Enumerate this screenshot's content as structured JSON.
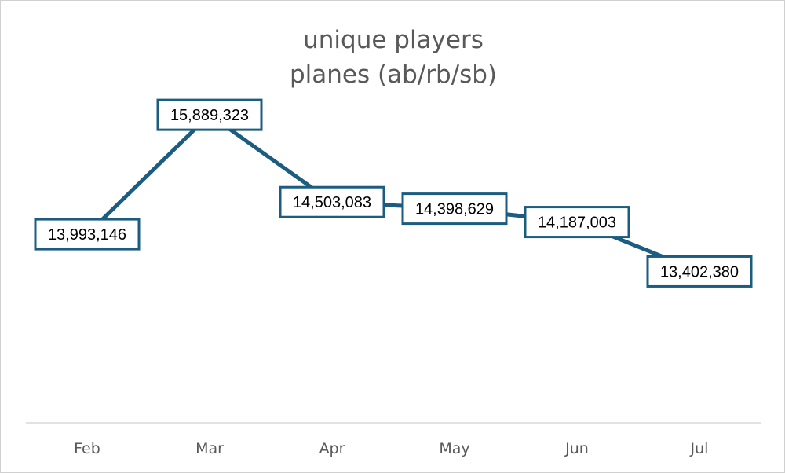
{
  "chart_data": {
    "type": "line",
    "title_lines": [
      "unique players",
      "planes (ab/rb/sb)"
    ],
    "categories": [
      "Feb",
      "Mar",
      "Apr",
      "May",
      "Jun",
      "Jul"
    ],
    "values": [
      13993146,
      15889323,
      14503083,
      14398629,
      14187003,
      13402380
    ],
    "value_labels": [
      "13,993,146",
      "15,889,323",
      "14,503,083",
      "14,398,629",
      "14,187,003",
      "13,402,380"
    ],
    "xlabel": "",
    "ylabel": "",
    "ylim": [
      11000000,
      17700000
    ],
    "grid": false,
    "legend": "none",
    "series_color": "#1b5c80",
    "axis_color": "#d9d9d9",
    "text_color": "#595959"
  }
}
